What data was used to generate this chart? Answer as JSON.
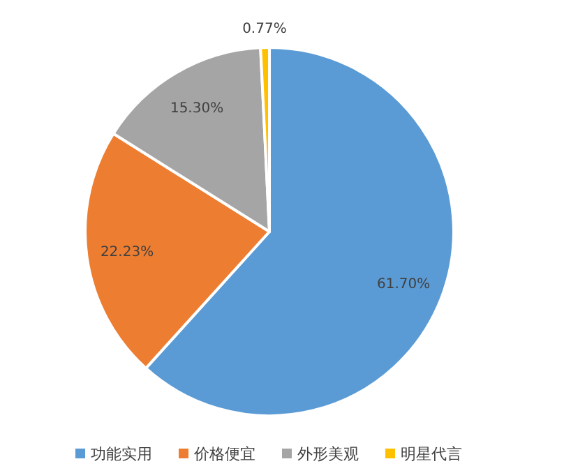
{
  "chart_data": {
    "type": "pie",
    "categories": [
      "功能实用",
      "价格便宜",
      "外形美观",
      "明星代言"
    ],
    "values": [
      61.7,
      22.23,
      15.3,
      0.77
    ],
    "colors": [
      "#5b9bd5",
      "#ed7d31",
      "#a5a5a5",
      "#ffc000"
    ],
    "value_labels": [
      "61.70%",
      "22.23%",
      "15.30%",
      "0.77%"
    ],
    "legend": "bottom"
  }
}
